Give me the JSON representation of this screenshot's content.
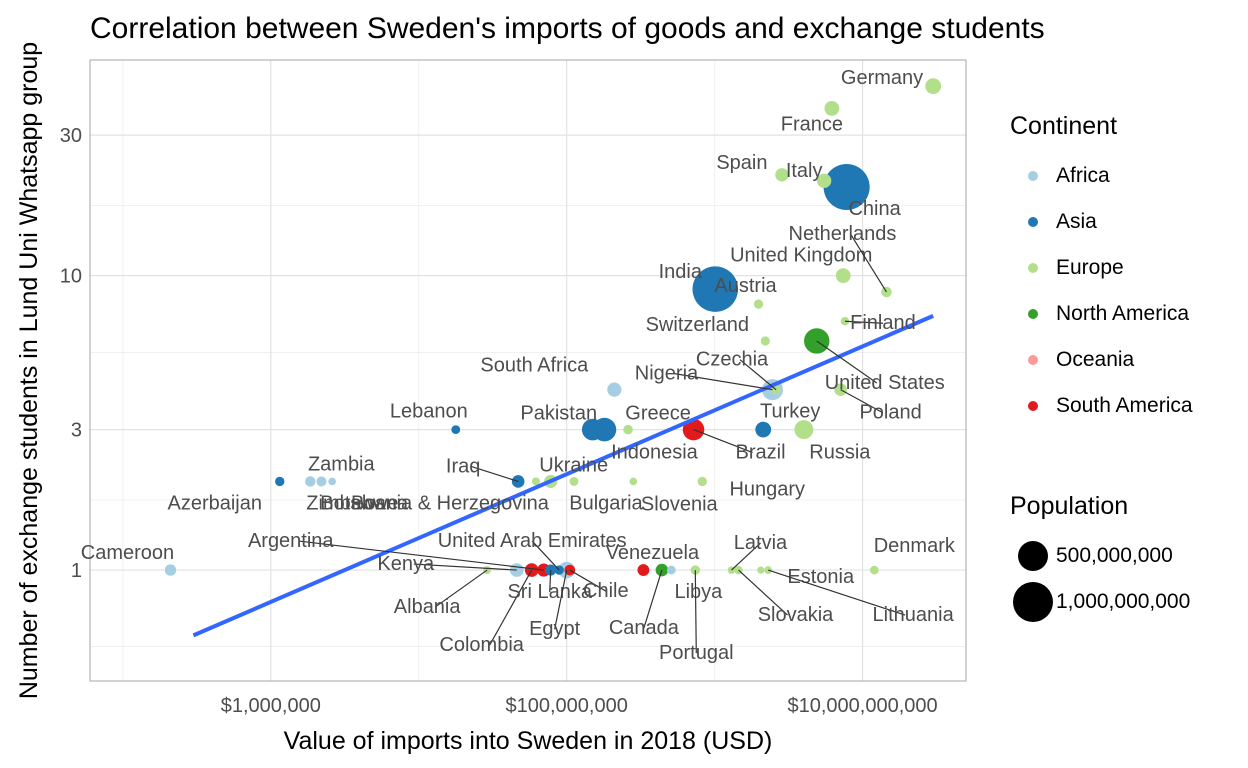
{
  "chart_data": {
    "type": "scatter",
    "title": "Correlation between Sweden's imports of goods and exchange students",
    "xlabel": "Value of imports into Sweden in 2018 (USD)",
    "ylabel": "Number of exchange students in Lund Uni Whatsapp group",
    "x_scale": "log10",
    "y_scale": "log10",
    "xlim": [
      60000,
      50000000000
    ],
    "ylim": [
      0.42,
      54
    ],
    "x_ticks": [
      1000000,
      100000000,
      10000000000
    ],
    "x_tick_labels": [
      "$1,000,000",
      "$100,000,000",
      "$10,000,000,000"
    ],
    "y_ticks": [
      1,
      3,
      10,
      30
    ],
    "y_tick_labels": [
      "1",
      "3",
      "10",
      "30"
    ],
    "grid": true,
    "legend_color": {
      "title": "Continent",
      "entries": [
        {
          "name": "Africa",
          "color": "#a6cee3"
        },
        {
          "name": "Asia",
          "color": "#1f78b4"
        },
        {
          "name": "Europe",
          "color": "#b2df8a"
        },
        {
          "name": "North America",
          "color": "#33a02c"
        },
        {
          "name": "Oceania",
          "color": "#fb9a99"
        },
        {
          "name": "South America",
          "color": "#e31a1c"
        }
      ]
    },
    "legend_size": {
      "title": "Population",
      "entries": [
        {
          "label": "500,000,000",
          "value": 500000000
        },
        {
          "label": "1,000,000,000",
          "value": 1000000000
        }
      ]
    },
    "trend_line": {
      "color": "#3366ff",
      "x": [
        300000,
        30000000000
      ],
      "y": [
        0.6,
        7.3
      ]
    },
    "points": [
      {
        "country": "Germany",
        "continent": "Europe",
        "imports": 30000000000,
        "students": 44,
        "population": 83000000
      },
      {
        "country": "France",
        "continent": "Europe",
        "imports": 6200000000,
        "students": 37,
        "population": 67000000
      },
      {
        "country": "Italy",
        "continent": "Europe",
        "imports": 5500000000,
        "students": 21,
        "population": 60000000
      },
      {
        "country": "Spain",
        "continent": "Europe",
        "imports": 2850000000,
        "students": 22,
        "population": 47000000
      },
      {
        "country": "China",
        "continent": "Asia",
        "imports": 7800000000,
        "students": 20,
        "population": 1390000000
      },
      {
        "country": "United Kingdom",
        "continent": "Europe",
        "imports": 7400000000,
        "students": 10,
        "population": 66000000
      },
      {
        "country": "Netherlands",
        "continent": "Europe",
        "imports": 14500000000,
        "students": 8.8,
        "population": 17000000
      },
      {
        "country": "India",
        "continent": "Asia",
        "imports": 1010000000,
        "students": 9,
        "population": 1350000000
      },
      {
        "country": "Austria",
        "continent": "Europe",
        "imports": 1980000000,
        "students": 8,
        "population": 9000000
      },
      {
        "country": "Finland",
        "continent": "Europe",
        "imports": 7600000000,
        "students": 7,
        "population": 5500000
      },
      {
        "country": "United States",
        "continent": "North America",
        "imports": 4900000000,
        "students": 6,
        "population": 327000000
      },
      {
        "country": "Switzerland",
        "continent": "Europe",
        "imports": 2200000000,
        "students": 6,
        "population": 8500000
      },
      {
        "country": "Poland",
        "continent": "Europe",
        "imports": 7100000000,
        "students": 4.1,
        "population": 38000000
      },
      {
        "country": "Czechia",
        "continent": "Europe",
        "imports": 2600000000,
        "students": 4.1,
        "population": 10600000
      },
      {
        "country": "Nigeria",
        "continent": "Africa",
        "imports": 2460000000,
        "students": 4.1,
        "population": 196000000
      },
      {
        "country": "South Africa",
        "continent": "Africa",
        "imports": 210000000,
        "students": 4.1,
        "population": 58000000
      },
      {
        "country": "Turkey",
        "continent": "Asia",
        "imports": 2130000000,
        "students": 3,
        "population": 82000000
      },
      {
        "country": "Russia",
        "continent": "Europe",
        "imports": 4010000000,
        "students": 3,
        "population": 144000000
      },
      {
        "country": "Brazil",
        "continent": "South America",
        "imports": 720000000,
        "students": 3,
        "population": 209000000
      },
      {
        "country": "Pakistan",
        "continent": "Asia",
        "imports": 150000000,
        "students": 3,
        "population": 212000000
      },
      {
        "country": "Indonesia",
        "continent": "Asia",
        "imports": 180000000,
        "students": 3,
        "population": 268000000
      },
      {
        "country": "Greece",
        "continent": "Europe",
        "imports": 260000000,
        "students": 3,
        "population": 10700000
      },
      {
        "country": "Lebanon",
        "continent": "Asia",
        "imports": 17800000,
        "students": 3,
        "population": 6800000
      },
      {
        "country": "Ukraine",
        "continent": "Europe",
        "imports": 78000000,
        "students": 2,
        "population": 44000000
      },
      {
        "country": "Iraq",
        "continent": "Asia",
        "imports": 47000000,
        "students": 2,
        "population": 38000000
      },
      {
        "country": "Bulgaria",
        "continent": "Europe",
        "imports": 112000000,
        "students": 2,
        "population": 7000000
      },
      {
        "country": "Slovenia",
        "continent": "Europe",
        "imports": 282000000,
        "students": 2,
        "population": 2100000
      },
      {
        "country": "Hungary",
        "continent": "Europe",
        "imports": 825000000,
        "students": 2,
        "population": 9800000
      },
      {
        "country": "Bosnia & Herzegovina",
        "continent": "Europe",
        "imports": 62000000,
        "students": 2,
        "population": 3300000
      },
      {
        "country": "Zambia",
        "continent": "Africa",
        "imports": 1850000,
        "students": 2,
        "population": 17000000
      },
      {
        "country": "Zimbabwe",
        "continent": "Africa",
        "imports": 2200000,
        "students": 2,
        "population": 14000000
      },
      {
        "country": "Botswana",
        "continent": "Africa",
        "imports": 2600000,
        "students": 2,
        "population": 2300000
      },
      {
        "country": "Azerbaijan",
        "continent": "Asia",
        "imports": 1150000,
        "students": 2,
        "population": 10000000
      },
      {
        "country": "Cameroon",
        "continent": "Africa",
        "imports": 210000,
        "students": 1,
        "population": 25000000
      },
      {
        "country": "Denmark",
        "continent": "Europe",
        "imports": 12000000000,
        "students": 1,
        "population": 5800000
      },
      {
        "country": "Kenya",
        "continent": "Africa",
        "imports": 46000000,
        "students": 1,
        "population": 51000000
      },
      {
        "country": "Albania",
        "continent": "Europe",
        "imports": 29000000,
        "students": 1,
        "population": 2900000
      },
      {
        "country": "Argentina",
        "continent": "South America",
        "imports": 70000000,
        "students": 1,
        "population": 44000000
      },
      {
        "country": "Colombia",
        "continent": "South America",
        "imports": 58000000,
        "students": 1,
        "population": 50000000
      },
      {
        "country": "Sri Lanka",
        "continent": "Asia",
        "imports": 78000000,
        "students": 1,
        "population": 22000000
      },
      {
        "country": "United Arab Emirates",
        "continent": "Asia",
        "imports": 89000000,
        "students": 1,
        "population": 9600000
      },
      {
        "country": "Egypt",
        "continent": "Africa",
        "imports": 100000000,
        "students": 1,
        "population": 98000000
      },
      {
        "country": "Chile",
        "continent": "South America",
        "imports": 105000000,
        "students": 1,
        "population": 18700000
      },
      {
        "country": "Venezuela",
        "continent": "South America",
        "imports": 330000000,
        "students": 1,
        "population": 29000000
      },
      {
        "country": "Canada",
        "continent": "North America",
        "imports": 440000000,
        "students": 1,
        "population": 37000000
      },
      {
        "country": "Libya",
        "continent": "Africa",
        "imports": 510000000,
        "students": 1,
        "population": 6700000
      },
      {
        "country": "Portugal",
        "continent": "Europe",
        "imports": 740000000,
        "students": 1,
        "population": 10300000
      },
      {
        "country": "Latvia",
        "continent": "Europe",
        "imports": 1300000000,
        "students": 1,
        "population": 1900000
      },
      {
        "country": "Slovakia",
        "continent": "Europe",
        "imports": 1450000000,
        "students": 1,
        "population": 5400000
      },
      {
        "country": "Estonia",
        "continent": "Europe",
        "imports": 2050000000,
        "students": 1,
        "population": 1300000
      },
      {
        "country": "Lithuania",
        "continent": "Europe",
        "imports": 2300000000,
        "students": 1,
        "population": 2800000
      }
    ]
  }
}
